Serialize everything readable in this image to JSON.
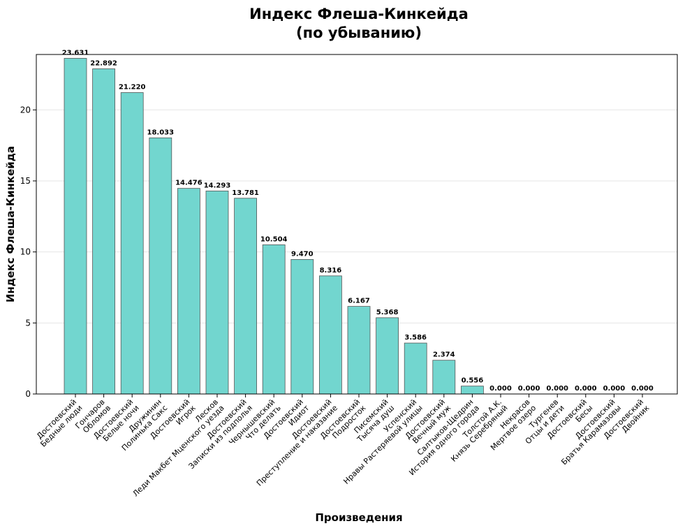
{
  "chart_data": {
    "type": "bar",
    "title_line1": "Индекс Флеша-Кинкейда",
    "title_line2": "(по убыванию)",
    "xlabel": "Произведения",
    "ylabel": "Индекс Флеша-Кинкейда",
    "ylim": [
      0,
      23.9
    ],
    "yticks": [
      0,
      5,
      10,
      15,
      20
    ],
    "grid": true,
    "bar_color": "#72d6cf",
    "categories": [
      [
        "Достоевский",
        "Бедные люди"
      ],
      [
        "Гончаров",
        "Обломов"
      ],
      [
        "Достоевский",
        "Белые ночи"
      ],
      [
        "Дружинин",
        "Полинька Сакс"
      ],
      [
        "Достоевский",
        "Игрок"
      ],
      [
        "Лесков",
        "Леди Макбет Мценского уезда"
      ],
      [
        "Достоевский",
        "Записки из подполья"
      ],
      [
        "Чернышевский",
        "Что делать"
      ],
      [
        "Достоевский",
        "Идиот"
      ],
      [
        "Достоевский",
        "Преступление и наказание"
      ],
      [
        "Достоевский",
        "Подросток"
      ],
      [
        "Писемский",
        "Тысяча душ"
      ],
      [
        "Успенский",
        "Нравы Растеряевой улицы"
      ],
      [
        "Достоевский",
        "Вечный муж"
      ],
      [
        "Салтыков-Щедрин",
        "История одного города"
      ],
      [
        "Толстой А.К.",
        "Князь Серебряный"
      ],
      [
        "Некрасов",
        "Мертвое озеро"
      ],
      [
        "Тургенев",
        "Отцы и дети"
      ],
      [
        "Достоевский",
        "Бесы"
      ],
      [
        "Достоевский",
        "Братья Карамазовы"
      ],
      [
        "Достоевский",
        "Двойник"
      ]
    ],
    "values": [
      23.631,
      22.892,
      21.22,
      18.033,
      14.476,
      14.293,
      13.781,
      10.504,
      9.47,
      8.316,
      6.167,
      5.368,
      3.586,
      2.374,
      0.556,
      0.0,
      0.0,
      0.0,
      0.0,
      0.0,
      0.0
    ],
    "data_labels": [
      "23.631",
      "22.892",
      "21.220",
      "18.033",
      "14.476",
      "14.293",
      "13.781",
      "10.504",
      "9.470",
      "8.316",
      "6.167",
      "5.368",
      "3.586",
      "2.374",
      "0.556",
      "0.000",
      "0.000",
      "0.000",
      "0.000",
      "0.000",
      "0.000"
    ]
  }
}
